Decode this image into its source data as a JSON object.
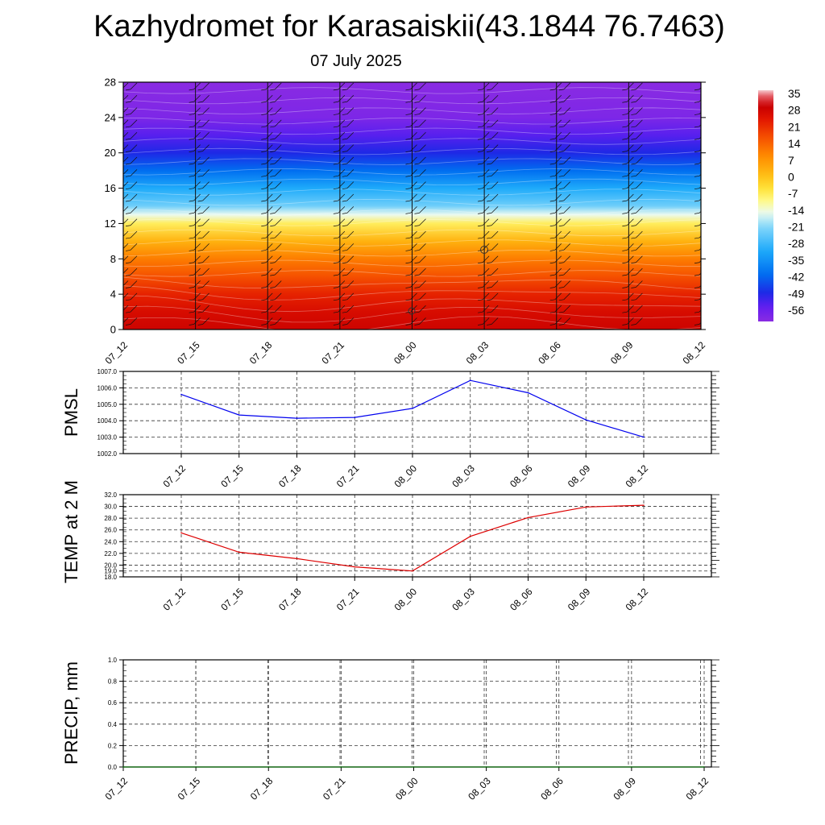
{
  "title": "Kazhydromet for Karasaiskii(43.1844 76.7463)",
  "subtitle": "07 July 2025",
  "colors": {
    "pmsl_line": "#0000ee",
    "temp_line": "#dd0000",
    "precip_line": "#006400",
    "grid": "#333333"
  },
  "chart_data": [
    {
      "type": "heatmap",
      "title": "",
      "xlabel": "",
      "ylabel": "",
      "x_ticks": [
        "07_12",
        "07_15",
        "07_18",
        "07_21",
        "08_00",
        "08_03",
        "08_06",
        "08_09",
        "08_12"
      ],
      "y_ticks": [
        "0",
        "4",
        "8",
        "12",
        "16",
        "20",
        "24",
        "28"
      ],
      "ylim": [
        0,
        28
      ],
      "colorbar": {
        "labels": [
          "35",
          "28",
          "21",
          "14",
          "7",
          "0",
          "-7",
          "-14",
          "-21",
          "-28",
          "-35",
          "-42",
          "-49",
          "-56"
        ],
        "range": [
          -60,
          38
        ]
      },
      "temperature_profile": [
        {
          "level": 0,
          "value": 30
        },
        {
          "level": 2,
          "value": 28
        },
        {
          "level": 4,
          "value": 24
        },
        {
          "level": 6,
          "value": 18
        },
        {
          "level": 8,
          "value": 12
        },
        {
          "level": 10,
          "value": 4
        },
        {
          "level": 12,
          "value": -6
        },
        {
          "level": 13,
          "value": -14
        },
        {
          "level": 14,
          "value": -22
        },
        {
          "level": 16,
          "value": -30
        },
        {
          "level": 18,
          "value": -40
        },
        {
          "level": 20,
          "value": -48
        },
        {
          "level": 22,
          "value": -53
        },
        {
          "level": 24,
          "value": -58
        },
        {
          "level": 28,
          "value": -60
        }
      ],
      "wind_barbs": "present"
    },
    {
      "type": "line",
      "ylabel": "PMSL",
      "x_ticks": [
        "07_12",
        "07_15",
        "07_18",
        "07_21",
        "08_00",
        "08_03",
        "08_06",
        "08_09",
        "08_12"
      ],
      "y_ticks": [
        "1002.0",
        "1003.0",
        "1004.0",
        "1005.0",
        "1006.0",
        "1007.0"
      ],
      "ylim": [
        1002,
        1007
      ],
      "series": [
        {
          "values": [
            1005.6,
            1004.35,
            1004.15,
            1004.2,
            1004.75,
            1006.45,
            1005.7,
            1004.05,
            1003.0
          ]
        }
      ],
      "grid": true
    },
    {
      "type": "line",
      "ylabel": "TEMP at 2 M",
      "x_ticks": [
        "07_12",
        "07_15",
        "07_18",
        "07_21",
        "08_00",
        "08_03",
        "08_06",
        "08_09",
        "08_12"
      ],
      "y_ticks": [
        "18.0",
        "19.0",
        "20.0",
        "22.0",
        "24.0",
        "26.0",
        "28.0",
        "30.0",
        "32.0"
      ],
      "ylim": [
        18,
        32
      ],
      "series": [
        {
          "values": [
            25.5,
            22.2,
            21.1,
            19.7,
            19.0,
            24.9,
            28.1,
            29.9,
            30.2
          ]
        }
      ],
      "grid": true
    },
    {
      "type": "line",
      "ylabel": "PRECIP, mm",
      "x_ticks": [
        "07_12",
        "07_15",
        "07_18",
        "07_21",
        "08_00",
        "08_03",
        "08_06",
        "08_09",
        "08_12"
      ],
      "y_ticks": [
        "0.0",
        "0.2",
        "0.4",
        "0.6",
        "0.8",
        "1.0"
      ],
      "ylim": [
        0,
        1
      ],
      "series": [
        {
          "values": [
            0,
            0,
            0,
            0,
            0,
            0,
            0,
            0,
            0
          ]
        }
      ],
      "grid": true
    }
  ]
}
